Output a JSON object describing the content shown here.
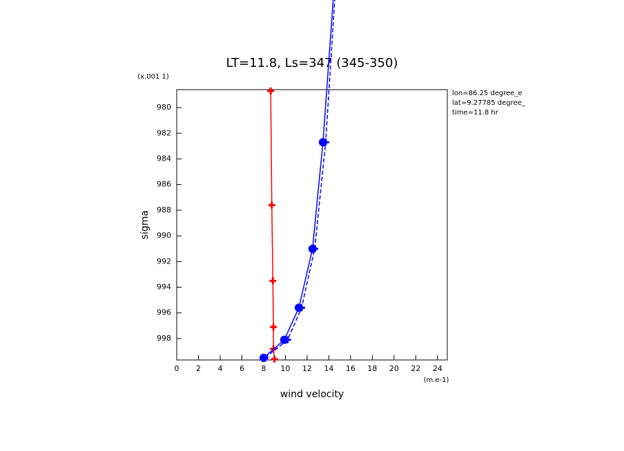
{
  "chart_data": {
    "type": "line",
    "title": "LT=11.8, Ls=347 (345-350)",
    "x_label": "wind velocity",
    "y_label": "sigma",
    "x_units": "(m.e-1)",
    "y_units": "(x.001 1)",
    "annotations": [
      "lon=86.25 degree_e",
      "lat=9.27785 degree_",
      "time=11.8 hr"
    ],
    "xlim": [
      0,
      24.9
    ],
    "ylim": [
      999.67,
      978.6
    ],
    "xticks": [
      0,
      2,
      4,
      6,
      8,
      10,
      12,
      14,
      16,
      18,
      20,
      22,
      24
    ],
    "yticks": [
      980,
      982,
      984,
      986,
      988,
      990,
      992,
      994,
      996,
      998
    ],
    "series": [
      {
        "color": "#ff0000",
        "style": "solid",
        "marker": "plus",
        "x": [
          8.65,
          8.75,
          8.85,
          8.9,
          8.9,
          9.0
        ],
        "y": [
          978.7,
          987.6,
          993.5,
          997.1,
          998.8,
          999.6
        ]
      },
      {
        "color": "#0000ff",
        "style": "solid",
        "marker": "dot",
        "x": [
          8.0,
          9.9,
          11.24,
          12.5,
          13.46,
          14.4
        ],
        "y": [
          999.5,
          998.1,
          995.6,
          991.0,
          982.7,
          971.6
        ]
      },
      {
        "color": "#0000ff",
        "style": "dashed",
        "marker": "plus",
        "x": [
          8.13,
          10.2,
          11.49,
          12.7,
          13.71,
          14.54
        ],
        "y": [
          999.5,
          998.1,
          995.6,
          991.0,
          982.7,
          971.6
        ]
      }
    ]
  }
}
